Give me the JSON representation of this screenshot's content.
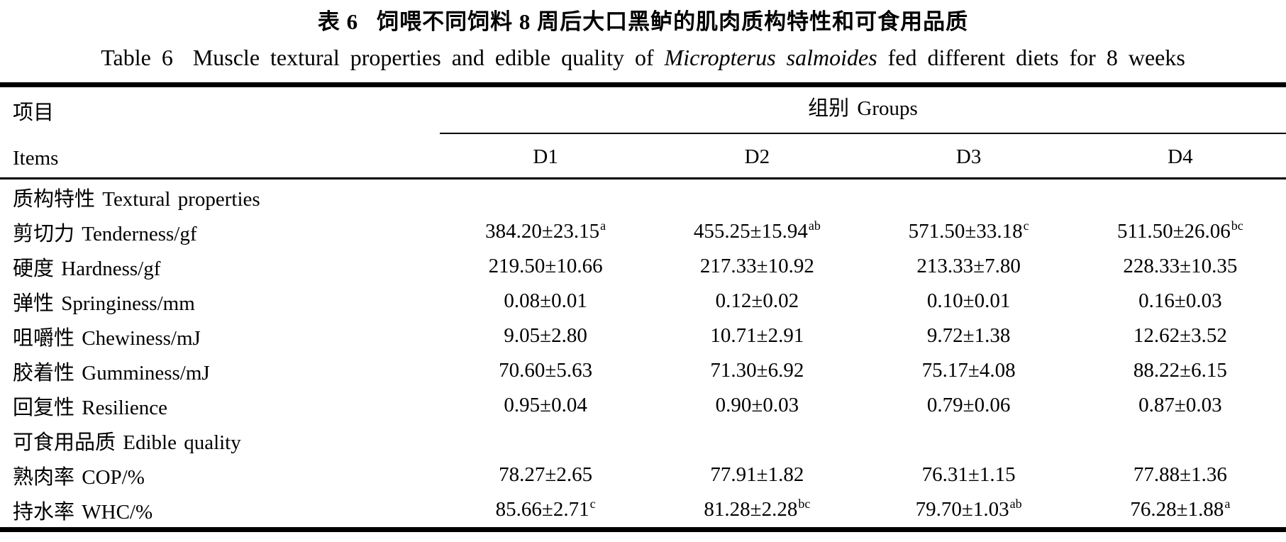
{
  "title": {
    "cn_prefix": "表 6",
    "cn_main": "饲喂不同饲料 8 周后大口黑鲈的肌肉质构特性和可食用品质",
    "en_prefix": "Table 6",
    "en_part1": "Muscle textural properties and edible quality of",
    "en_species": "Micropterus salmoides",
    "en_part2": "fed different diets for 8 weeks"
  },
  "table": {
    "stub_header": {
      "cn": "项目",
      "en": "Items"
    },
    "group_header": "组别 Groups",
    "columns": [
      "D1",
      "D2",
      "D3",
      "D4"
    ],
    "rows": [
      {
        "type": "section",
        "label": "质构特性 Textural properties"
      },
      {
        "type": "data",
        "label": "剪切力 Tenderness/gf",
        "values": [
          {
            "base": "384.20±23.15",
            "sup": "a"
          },
          {
            "base": "455.25±15.94",
            "sup": "ab"
          },
          {
            "base": "571.50±33.18",
            "sup": "c"
          },
          {
            "base": "511.50±26.06",
            "sup": "bc"
          }
        ]
      },
      {
        "type": "data",
        "label": "硬度 Hardness/gf",
        "values": [
          {
            "base": "219.50±10.66",
            "sup": ""
          },
          {
            "base": "217.33±10.92",
            "sup": ""
          },
          {
            "base": "213.33±7.80",
            "sup": ""
          },
          {
            "base": "228.33±10.35",
            "sup": ""
          }
        ]
      },
      {
        "type": "data",
        "label": "弹性 Springiness/mm",
        "values": [
          {
            "base": "0.08±0.01",
            "sup": ""
          },
          {
            "base": "0.12±0.02",
            "sup": ""
          },
          {
            "base": "0.10±0.01",
            "sup": ""
          },
          {
            "base": "0.16±0.03",
            "sup": ""
          }
        ]
      },
      {
        "type": "data",
        "label": "咀嚼性 Chewiness/mJ",
        "values": [
          {
            "base": "9.05±2.80",
            "sup": ""
          },
          {
            "base": "10.71±2.91",
            "sup": ""
          },
          {
            "base": "9.72±1.38",
            "sup": ""
          },
          {
            "base": "12.62±3.52",
            "sup": ""
          }
        ]
      },
      {
        "type": "data",
        "label": "胶着性 Gumminess/mJ",
        "values": [
          {
            "base": "70.60±5.63",
            "sup": ""
          },
          {
            "base": "71.30±6.92",
            "sup": ""
          },
          {
            "base": "75.17±4.08",
            "sup": ""
          },
          {
            "base": "88.22±6.15",
            "sup": ""
          }
        ]
      },
      {
        "type": "data",
        "label": "回复性 Resilience",
        "values": [
          {
            "base": "0.95±0.04",
            "sup": ""
          },
          {
            "base": "0.90±0.03",
            "sup": ""
          },
          {
            "base": "0.79±0.06",
            "sup": ""
          },
          {
            "base": "0.87±0.03",
            "sup": ""
          }
        ]
      },
      {
        "type": "section",
        "label": "可食用品质 Edible quality"
      },
      {
        "type": "data",
        "label": "熟肉率 COP/%",
        "values": [
          {
            "base": "78.27±2.65",
            "sup": ""
          },
          {
            "base": "77.91±1.82",
            "sup": ""
          },
          {
            "base": "76.31±1.15",
            "sup": ""
          },
          {
            "base": "77.88±1.36",
            "sup": ""
          }
        ]
      },
      {
        "type": "data",
        "label": "持水率 WHC/%",
        "values": [
          {
            "base": "85.66±2.71",
            "sup": "c"
          },
          {
            "base": "81.28±2.28",
            "sup": "bc"
          },
          {
            "base": "79.70±1.03",
            "sup": "ab"
          },
          {
            "base": "76.28±1.88",
            "sup": "a"
          }
        ]
      }
    ]
  }
}
